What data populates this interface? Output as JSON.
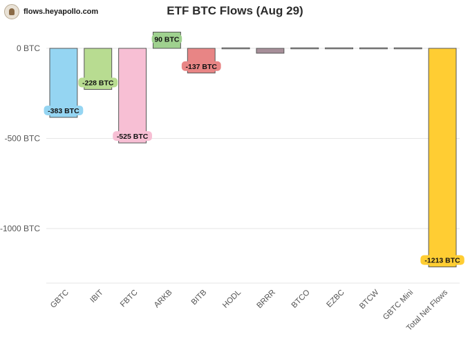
{
  "header": {
    "brand_url": "flows.heyapollo.com",
    "brand_icon": "apollo-logo-icon"
  },
  "chart_data": {
    "type": "bar",
    "subtype": "waterfall",
    "title": "ETF BTC Flows (Aug 29)",
    "xlabel": "",
    "ylabel": "",
    "unit": "BTC",
    "categories": [
      "GBTC",
      "IBIT",
      "FBTC",
      "ARKB",
      "BITB",
      "HODL",
      "BRRR",
      "BTCO",
      "EZBC",
      "BTCW",
      "GBTC Mini",
      "Total Net Flows"
    ],
    "values": [
      -383,
      -228,
      -525,
      90,
      -137,
      0,
      -27,
      0,
      0,
      0,
      0,
      -1213
    ],
    "data_labels": [
      "-383 BTC",
      "-228 BTC",
      "-525 BTC",
      "90 BTC",
      "-137 BTC",
      null,
      null,
      null,
      null,
      null,
      null,
      "-1213 BTC"
    ],
    "colors": [
      "#95d5f2",
      "#b8dc91",
      "#f7bfd4",
      "#9fd18f",
      "#e88585",
      "#cfcfcf",
      "#a78f99",
      "#cfcfcf",
      "#cfcfcf",
      "#cfcfcf",
      "#cfcfcf",
      "#ffcd33"
    ],
    "label_bg_colors": [
      "#95d5f2",
      "#b8dc91",
      "#f7bfd4",
      "#9fd18f",
      "#e88585",
      null,
      null,
      null,
      null,
      null,
      null,
      "#ffcd33"
    ],
    "y_ticks": [
      0,
      -500,
      -1000
    ],
    "y_tick_labels": [
      "0 BTC",
      "-500 BTC",
      "-1000 BTC"
    ],
    "ylim": [
      -1290,
      100
    ],
    "grid": true
  }
}
